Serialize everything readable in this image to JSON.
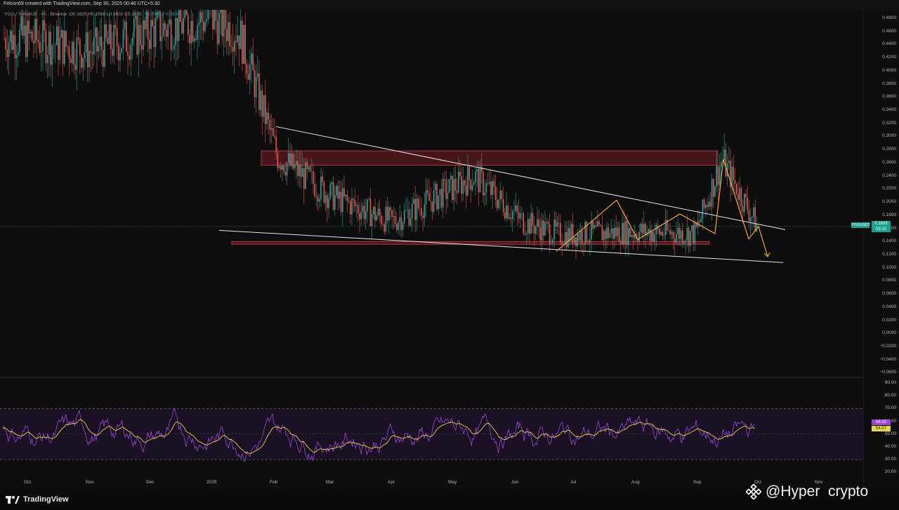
{
  "header": {
    "credit": "Felcon69 created with TradingView.com, Sep 30, 2025 00:46 UTC+5:30",
    "legend_symbol": "YGG / TetherUS · 4h · Binance",
    "legend_values": "O0.1625 H0.1686 L0.1602 C0.1635",
    "legend_change": "−0.0009 (−0.55%)"
  },
  "price_axis": {
    "ticks": [
      "0.4800",
      "0.4600",
      "0.4400",
      "0.4200",
      "0.4000",
      "0.3800",
      "0.3600",
      "0.3400",
      "0.3200",
      "0.3000",
      "0.2800",
      "0.2600",
      "0.2400",
      "0.2200",
      "0.2000",
      "0.1800",
      "0.1600",
      "0.1400",
      "0.1200",
      "0.1000",
      "0.0800",
      "0.0600",
      "0.0400",
      "0.0200",
      "0.0000",
      "−0.0200",
      "−0.0400",
      "−0.0600"
    ],
    "current_symbol": "YGGUSDT",
    "current_price": "0.1635",
    "countdown": "03:10"
  },
  "rsi_axis": {
    "ticks": [
      "90.00",
      "80.00",
      "70.00",
      "60.00",
      "50.00",
      "40.00",
      "30.00",
      "20.00"
    ],
    "rsi_value": "58.32",
    "rsi_ma_value": "54.07"
  },
  "time_axis": {
    "ticks": [
      "Oct",
      "Nov",
      "Dec",
      "2025",
      "Feb",
      "Mar",
      "Apr",
      "May",
      "Jun",
      "Jul",
      "Aug",
      "Sep",
      "Oct",
      "Nov"
    ]
  },
  "footer": {
    "brand": "TradingView",
    "watermark": "@Hyper  crypto"
  },
  "colors": {
    "up": "#26a69a",
    "down": "#ef5350",
    "zone_fill": "#5a1a1f",
    "zone_stroke": "#c0434b",
    "trendline": "#e8e8e8",
    "pattern": "#f0a640",
    "rsi": "#9c47d6",
    "rsi_ma": "#e6d544"
  },
  "chart_data": {
    "type": "candlestick",
    "symbol": "YGG / TetherUS",
    "interval": "4h",
    "x": [
      "Oct",
      "Nov",
      "Dec",
      "2025",
      "Feb",
      "Mar",
      "Apr",
      "May",
      "Jun",
      "Jul",
      "Aug",
      "Sep",
      "Oct",
      "Nov"
    ],
    "ylim": [
      -0.06,
      0.49
    ],
    "path": [
      [
        "Oct",
        0.45
      ],
      [
        "Nov",
        0.43
      ],
      [
        "Dec",
        0.46
      ],
      [
        "2025",
        0.48
      ],
      [
        "Jan",
        0.46
      ],
      [
        "Feb",
        0.27
      ],
      [
        "Mar",
        0.21
      ],
      [
        "Apr",
        0.17
      ],
      [
        "May",
        0.24
      ],
      [
        "Jun",
        0.17
      ],
      [
        "Jul",
        0.15
      ],
      [
        "Aug",
        0.155
      ],
      [
        "Sep",
        0.152
      ],
      [
        "Sep-mid",
        0.265
      ],
      [
        "Oct",
        0.1635
      ]
    ],
    "resistance_zone": [
      0.256,
      0.278
    ],
    "support_zone": [
      0.136,
      0.14
    ],
    "descending_trendline": [
      [
        "Jan-late",
        0.315
      ],
      [
        "Oct",
        0.158
      ]
    ],
    "lower_trendline": [
      [
        "Jan",
        0.157
      ],
      [
        "Oct",
        0.108
      ]
    ],
    "rsi": {
      "overbought": 70,
      "oversold": 30,
      "range": [
        10,
        95
      ],
      "last": 58.32,
      "ma_last": 54.07
    }
  }
}
